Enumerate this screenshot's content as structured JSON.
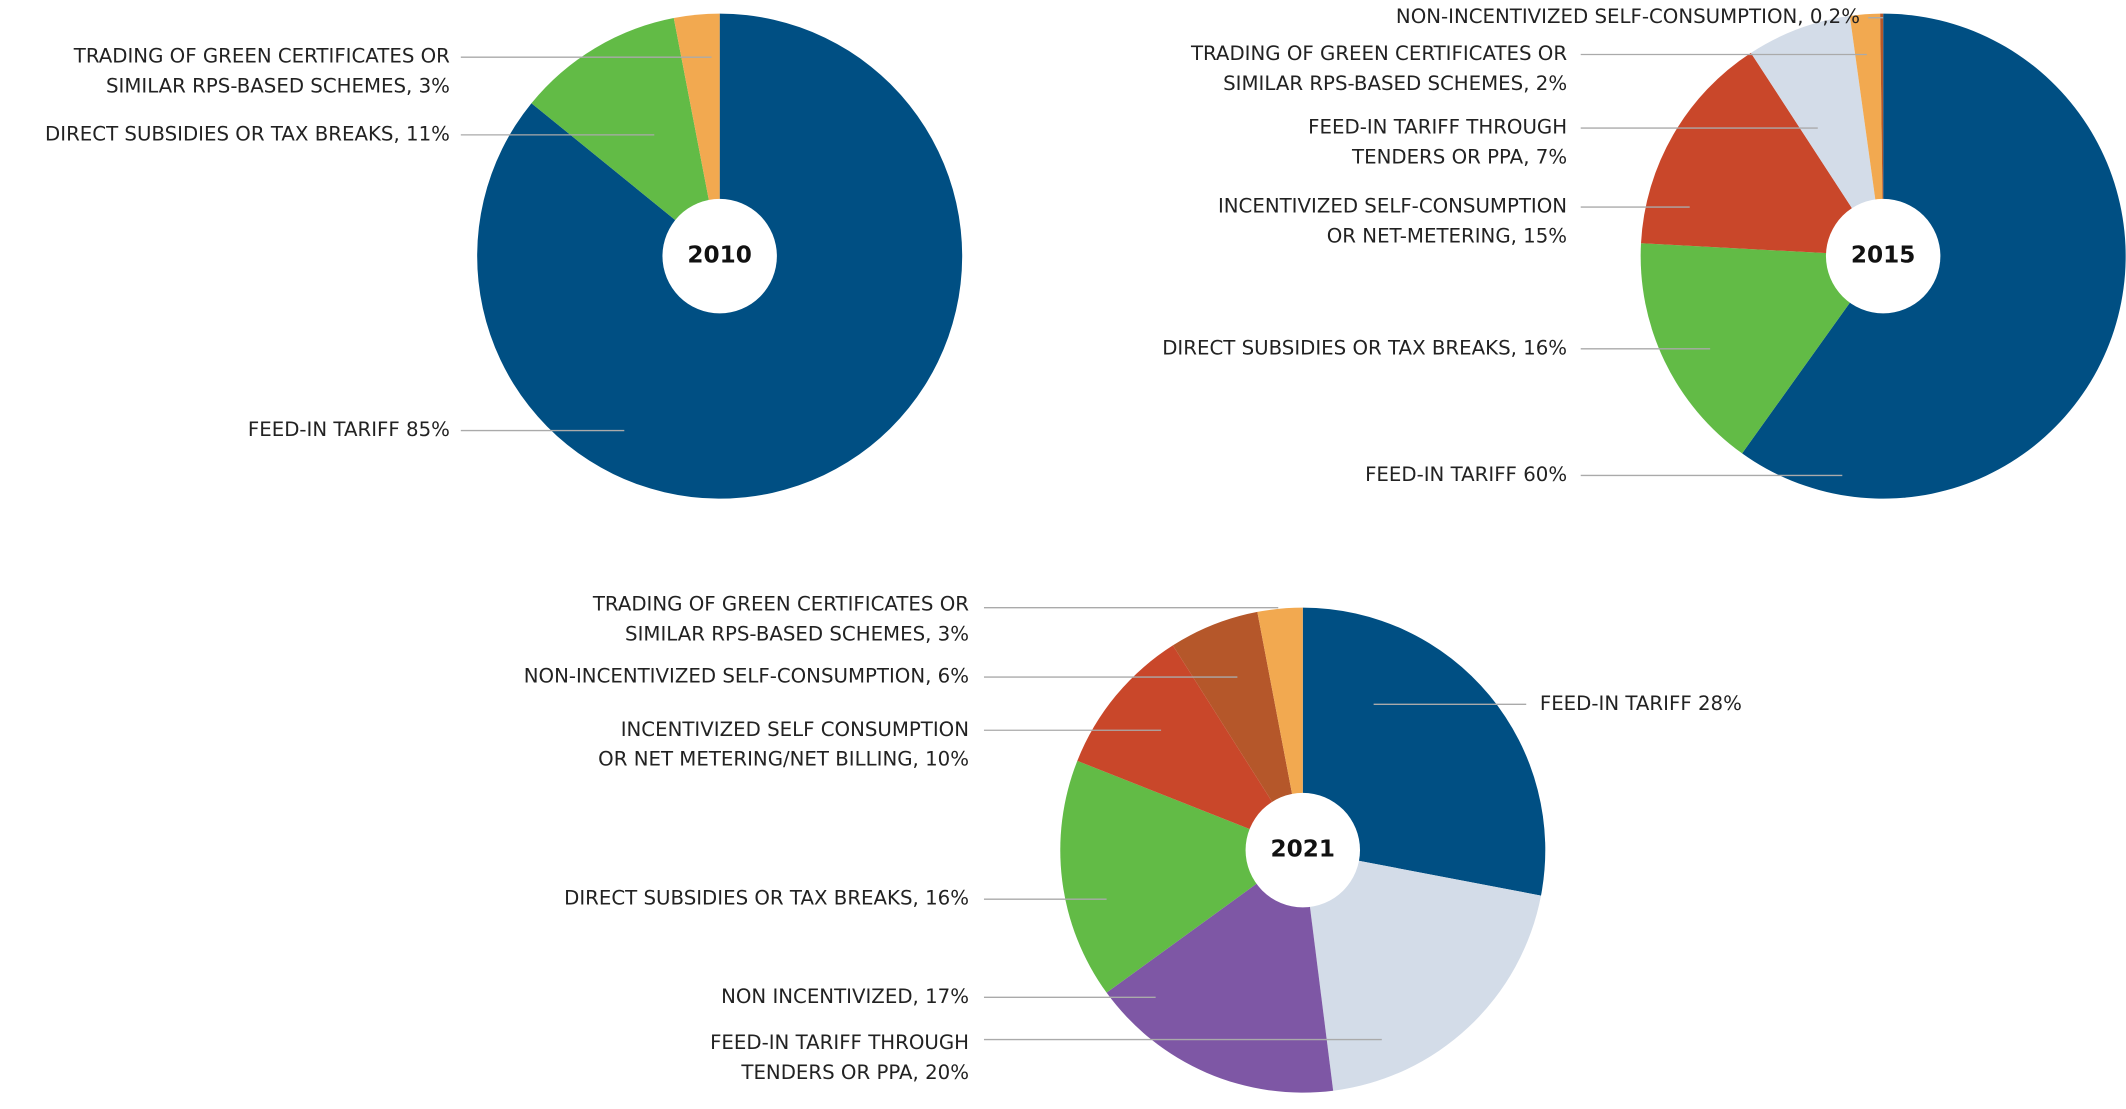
{
  "chart_data": [
    {
      "type": "pie",
      "title": "2010",
      "categories": [
        [
          "FEED-IN TARIFF 85%"
        ],
        [
          "DIRECT SUBSIDIES OR TAX BREAKS, 11%"
        ],
        [
          "TRADING OF GREEN CERTIFICATES OR",
          "SIMILAR RPS-BASED SCHEMES, 3%"
        ]
      ],
      "values": [
        85,
        11,
        3
      ],
      "colors": [
        "#004f83",
        "#62bb46",
        "#f2a950"
      ]
    },
    {
      "type": "pie",
      "title": "2015",
      "categories": [
        [
          "FEED-IN TARIFF 60%"
        ],
        [
          "DIRECT SUBSIDIES OR TAX BREAKS, 16%"
        ],
        [
          "INCENTIVIZED SELF-CONSUMPTION",
          "OR NET-METERING, 15%"
        ],
        [
          "FEED-IN TARIFF THROUGH",
          "TENDERS OR PPA, 7%"
        ],
        [
          "TRADING OF GREEN CERTIFICATES OR",
          "SIMILAR RPS-BASED SCHEMES, 2%"
        ],
        [
          "NON-INCENTIVIZED SELF-CONSUMPTION, 0,2%"
        ]
      ],
      "values": [
        60,
        16,
        15,
        7,
        2,
        0.2
      ],
      "colors": [
        "#004f83",
        "#62bb46",
        "#c9472a",
        "#d3dce8",
        "#f2a950",
        "#b5572a"
      ]
    },
    {
      "type": "pie",
      "title": "2021",
      "categories": [
        [
          "FEED-IN TARIFF 28%"
        ],
        [
          "FEED-IN TARIFF THROUGH",
          "TENDERS OR PPA, 20%"
        ],
        [
          "NON INCENTIVIZED, 17%"
        ],
        [
          "DIRECT SUBSIDIES OR TAX BREAKS, 16%"
        ],
        [
          "INCENTIVIZED SELF CONSUMPTION",
          "OR NET METERING/NET BILLING, 10%"
        ],
        [
          "NON-INCENTIVIZED SELF-CONSUMPTION, 6%"
        ],
        [
          "TRADING OF GREEN CERTIFICATES OR",
          "SIMILAR RPS-BASED SCHEMES, 3%"
        ]
      ],
      "values": [
        28,
        20,
        17,
        16,
        10,
        6,
        3
      ],
      "colors": [
        "#004f83",
        "#d3dce8",
        "#7e57a5",
        "#62bb46",
        "#c9472a",
        "#b5572a",
        "#f2a950"
      ]
    }
  ]
}
